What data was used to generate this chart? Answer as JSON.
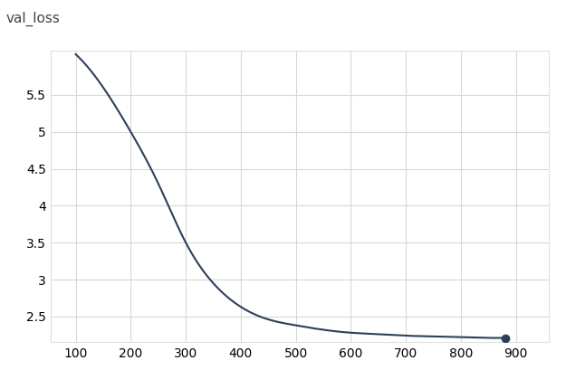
{
  "title": "val_loss",
  "title_fontsize": 11,
  "line_color": "#2e3f5c",
  "marker_color": "#2e3f5c",
  "background_color": "#ffffff",
  "grid_color": "#d8d8d8",
  "xlim": [
    55,
    960
  ],
  "ylim": [
    2.15,
    6.1
  ],
  "xticks": [
    100,
    200,
    300,
    400,
    500,
    600,
    700,
    800,
    900
  ],
  "yticks": [
    2.5,
    3.0,
    3.5,
    4.0,
    4.5,
    5.0,
    5.5
  ],
  "ytick_labels": [
    "2.5",
    "3",
    "3.5",
    "4",
    "4.5",
    "5",
    "5.5"
  ],
  "tick_fontsize": 10,
  "line_width": 1.5,
  "marker_size": 6,
  "curve_x": [
    100,
    150,
    200,
    250,
    300,
    350,
    400,
    450,
    500,
    550,
    600,
    650,
    700,
    750,
    800,
    850,
    880
  ],
  "curve_y": [
    6.05,
    5.6,
    5.0,
    4.3,
    3.5,
    2.95,
    2.63,
    2.46,
    2.38,
    2.32,
    2.28,
    2.26,
    2.24,
    2.23,
    2.22,
    2.21,
    2.21
  ]
}
